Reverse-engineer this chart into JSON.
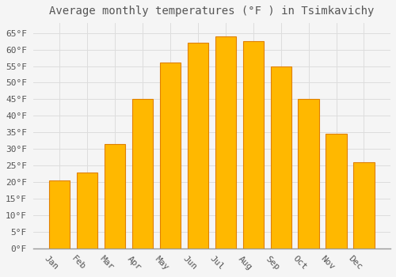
{
  "title": "Average monthly temperatures (°F ) in Tsimkavichy",
  "months": [
    "Jan",
    "Feb",
    "Mar",
    "Apr",
    "May",
    "Jun",
    "Jul",
    "Aug",
    "Sep",
    "Oct",
    "Nov",
    "Dec"
  ],
  "values": [
    20.5,
    23.0,
    31.5,
    45.0,
    56.0,
    62.0,
    64.0,
    62.5,
    55.0,
    45.0,
    34.5,
    26.0
  ],
  "bar_color": "#FFA500",
  "bar_face_color": "#FFB800",
  "bar_edge_color": "#E08000",
  "background_color": "#F5F5F5",
  "plot_bg_color": "#F5F5F5",
  "grid_color": "#DDDDDD",
  "text_color": "#555555",
  "ylim": [
    0,
    68
  ],
  "yticks": [
    0,
    5,
    10,
    15,
    20,
    25,
    30,
    35,
    40,
    45,
    50,
    55,
    60,
    65
  ],
  "title_fontsize": 10,
  "tick_fontsize": 8,
  "label_rotation": -45,
  "bar_width": 0.75
}
